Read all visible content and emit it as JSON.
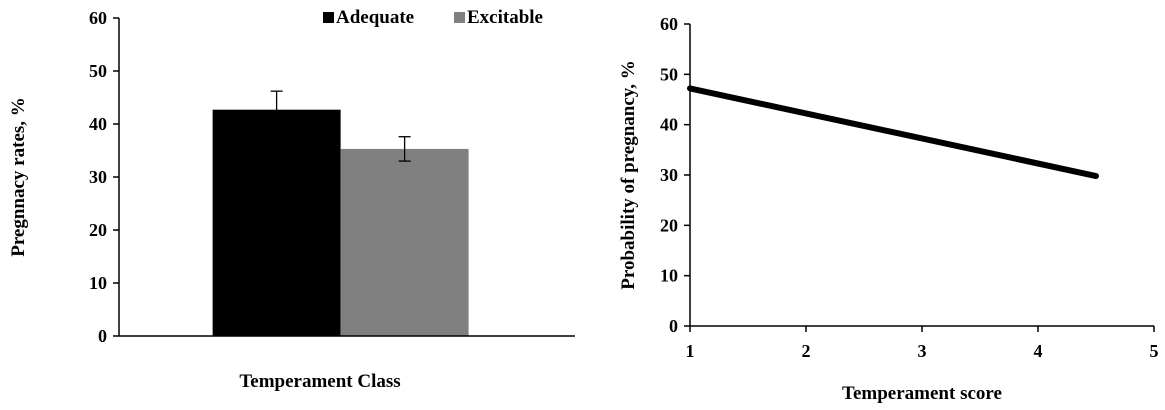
{
  "chart_data": [
    {
      "type": "bar",
      "title": "",
      "xlabel": "Temperament Class",
      "ylabel": "Pregnnacy rates, %",
      "ylim": [
        0,
        60
      ],
      "yticks": [
        0,
        10,
        20,
        30,
        40,
        50,
        60
      ],
      "grid": false,
      "legend_position": "top-right",
      "categories": [
        ""
      ],
      "series": [
        {
          "name": "Adequate",
          "values": [
            42.7
          ],
          "error": [
            3.5
          ],
          "color": "#000000"
        },
        {
          "name": "Excitable",
          "values": [
            35.3
          ],
          "error": [
            2.3
          ],
          "color": "#808080"
        }
      ]
    },
    {
      "type": "line",
      "title": "",
      "xlabel": "Temperament score",
      "ylabel": "Probability of pregnancy, %",
      "xlim": [
        1,
        5
      ],
      "ylim": [
        0,
        60
      ],
      "xticks": [
        1,
        2,
        3,
        4,
        5
      ],
      "yticks": [
        0,
        10,
        20,
        30,
        40,
        50,
        60
      ],
      "grid": false,
      "series": [
        {
          "x": [
            1,
            4.5
          ],
          "y": [
            47.2,
            29.8
          ],
          "color": "#000000"
        }
      ]
    }
  ]
}
